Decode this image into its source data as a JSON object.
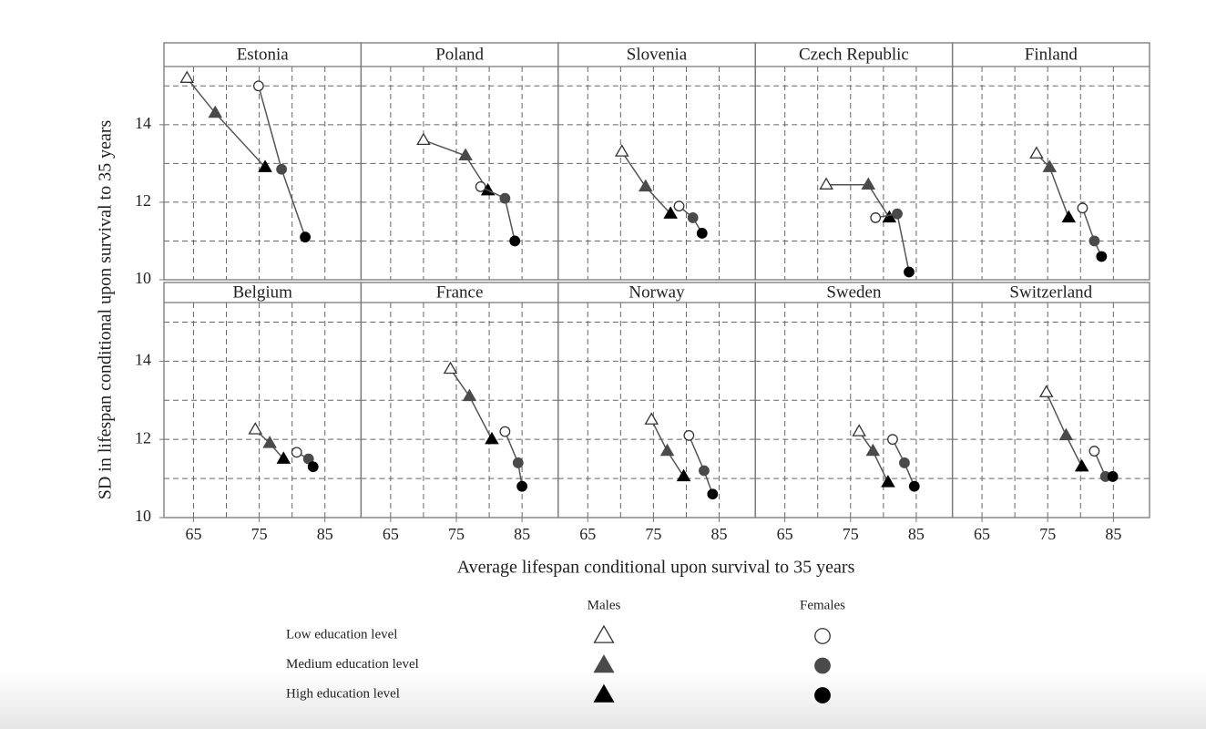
{
  "chart_data": {
    "type": "scatter",
    "xlabel": "Average lifespan conditional upon survival to 35 years",
    "ylabel": "SD in lifespan conditional upon survival to 35 years",
    "xlim": [
      60.5,
      90.5
    ],
    "ylim": [
      10,
      15.5
    ],
    "xticks": [
      65,
      75,
      85
    ],
    "yticks": [
      10,
      12,
      14
    ],
    "xgrid": [
      65,
      70,
      75,
      80,
      85
    ],
    "ygrid": [
      11,
      12,
      13,
      14,
      15
    ],
    "line_color": "#555",
    "legend": {
      "levels": [
        "Low education level",
        "Medium education level",
        "High education level"
      ],
      "level_colors": [
        "#ffffff",
        "#4a4a4a",
        "#000000"
      ]
    },
    "panels": [
      {
        "title": "Estonia",
        "series": [
          {
            "name": "Males",
            "marker": "triangle",
            "x": [
              64.0,
              68.3,
              75.9
            ],
            "values": [
              15.2,
              14.3,
              12.9
            ]
          },
          {
            "name": "Females",
            "marker": "circle",
            "x": [
              74.9,
              78.4,
              82.0
            ],
            "values": [
              15.0,
              12.85,
              11.1
            ]
          }
        ]
      },
      {
        "title": "Poland",
        "series": [
          {
            "name": "Males",
            "marker": "triangle",
            "x": [
              70.0,
              76.4,
              79.8
            ],
            "values": [
              13.6,
              13.2,
              12.3
            ]
          },
          {
            "name": "Females",
            "marker": "circle",
            "x": [
              78.7,
              82.4,
              83.9
            ],
            "values": [
              12.4,
              12.1,
              11.0
            ]
          }
        ]
      },
      {
        "title": "Slovenia",
        "series": [
          {
            "name": "Males",
            "marker": "triangle",
            "x": [
              70.2,
              73.8,
              77.6
            ],
            "values": [
              13.3,
              12.4,
              11.7
            ]
          },
          {
            "name": "Females",
            "marker": "circle",
            "x": [
              78.9,
              81.0,
              82.4
            ],
            "values": [
              11.9,
              11.6,
              11.2
            ]
          }
        ]
      },
      {
        "title": "Czech Republic",
        "series": [
          {
            "name": "Males",
            "marker": "triangle",
            "x": [
              71.3,
              77.7,
              80.9
            ],
            "values": [
              12.45,
              12.45,
              11.6
            ]
          },
          {
            "name": "Females",
            "marker": "circle",
            "x": [
              78.8,
              82.1,
              83.9
            ],
            "values": [
              11.6,
              11.7,
              10.2
            ]
          }
        ]
      },
      {
        "title": "Finland",
        "series": [
          {
            "name": "Males",
            "marker": "triangle",
            "x": [
              73.3,
              75.3,
              78.2
            ],
            "values": [
              13.25,
              12.9,
              11.6
            ]
          },
          {
            "name": "Females",
            "marker": "circle",
            "x": [
              80.3,
              82.1,
              83.2
            ],
            "values": [
              11.85,
              11.0,
              10.6
            ]
          }
        ]
      },
      {
        "title": "Belgium",
        "series": [
          {
            "name": "Males",
            "marker": "triangle",
            "x": [
              74.4,
              76.6,
              78.7
            ],
            "values": [
              12.25,
              11.9,
              11.5
            ]
          },
          {
            "name": "Females",
            "marker": "circle",
            "x": [
              80.7,
              82.5,
              83.2
            ],
            "values": [
              11.67,
              11.5,
              11.3
            ]
          }
        ]
      },
      {
        "title": "France",
        "series": [
          {
            "name": "Males",
            "marker": "triangle",
            "x": [
              74.1,
              77.0,
              80.4
            ],
            "values": [
              13.8,
              13.1,
              12.0
            ]
          },
          {
            "name": "Females",
            "marker": "circle",
            "x": [
              82.4,
              84.4,
              85.0
            ],
            "values": [
              12.2,
              11.4,
              10.8
            ]
          }
        ]
      },
      {
        "title": "Norway",
        "series": [
          {
            "name": "Males",
            "marker": "triangle",
            "x": [
              74.7,
              77.1,
              79.6
            ],
            "values": [
              12.5,
              11.7,
              11.05
            ]
          },
          {
            "name": "Females",
            "marker": "circle",
            "x": [
              80.4,
              82.7,
              84.0
            ],
            "values": [
              12.1,
              11.2,
              10.6
            ]
          }
        ]
      },
      {
        "title": "Sweden",
        "series": [
          {
            "name": "Males",
            "marker": "triangle",
            "x": [
              76.3,
              78.4,
              80.7
            ],
            "values": [
              12.2,
              11.7,
              10.9
            ]
          },
          {
            "name": "Females",
            "marker": "circle",
            "x": [
              81.4,
              83.2,
              84.7
            ],
            "values": [
              12.0,
              11.4,
              10.8
            ]
          }
        ]
      },
      {
        "title": "Switzerland",
        "series": [
          {
            "name": "Males",
            "marker": "triangle",
            "x": [
              74.8,
              77.8,
              80.2
            ],
            "values": [
              13.2,
              12.1,
              11.3
            ]
          },
          {
            "name": "Females",
            "marker": "circle",
            "x": [
              82.1,
              83.8,
              84.9
            ],
            "values": [
              11.7,
              11.05,
              11.05
            ]
          }
        ]
      }
    ]
  }
}
